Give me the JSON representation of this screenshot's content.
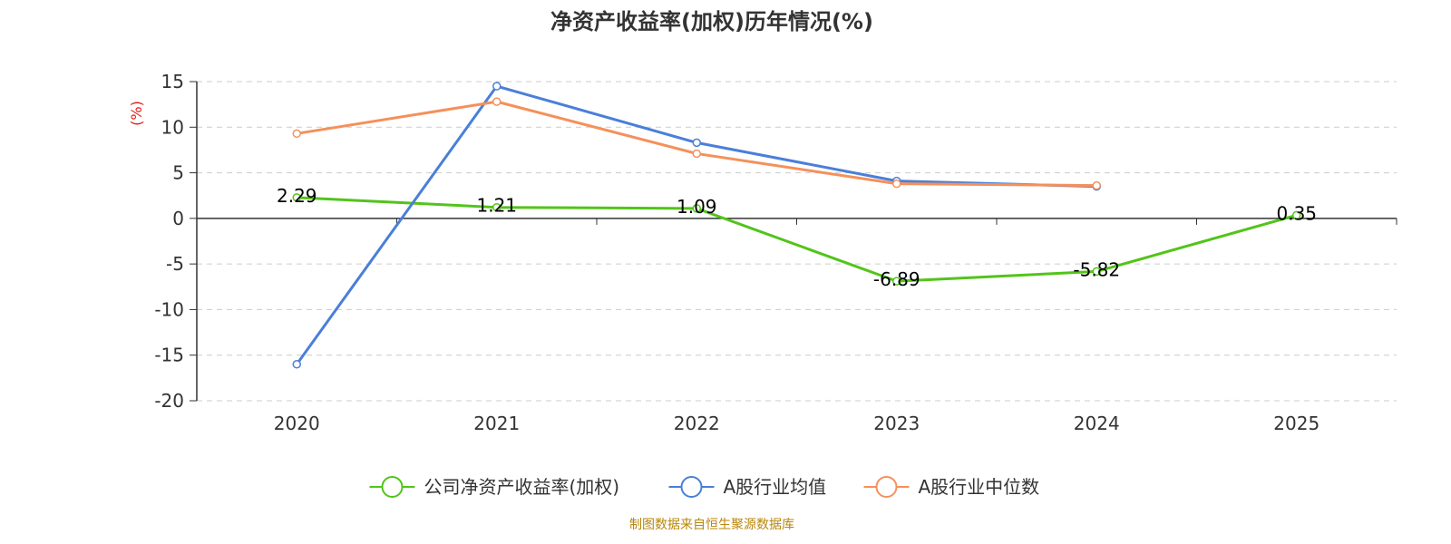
{
  "chart_data": {
    "type": "line",
    "title": "净资产收益率(加权)历年情况(%)",
    "ylabel": "(%)",
    "xlabel": "",
    "categories": [
      "2020",
      "2021",
      "2022",
      "2023",
      "2024",
      "2025"
    ],
    "ylim": [
      -20,
      15
    ],
    "yticks": [
      15,
      10,
      5,
      0,
      -5,
      -10,
      -15,
      -20
    ],
    "grid": true,
    "legend_position": "bottom",
    "series": [
      {
        "name": "公司净资产收益率(加权)",
        "color": "#52c41a",
        "values": [
          2.29,
          1.21,
          1.09,
          -6.89,
          -5.82,
          0.35
        ],
        "labels": [
          "2.29",
          "1.21",
          "1.09",
          "-6.89",
          "-5.82",
          "0.35"
        ]
      },
      {
        "name": "A股行业均值",
        "color": "#4a7fd9",
        "values": [
          -16.0,
          14.5,
          8.3,
          4.1,
          3.5,
          null
        ]
      },
      {
        "name": "A股行业中位数",
        "color": "#f5905a",
        "values": [
          9.3,
          12.8,
          7.1,
          3.8,
          3.6,
          null
        ]
      }
    ]
  },
  "source": "制图数据来自恒生聚源数据库",
  "colors": {
    "axis_label_red": "#e31a1a",
    "grid": "#cccccc"
  }
}
